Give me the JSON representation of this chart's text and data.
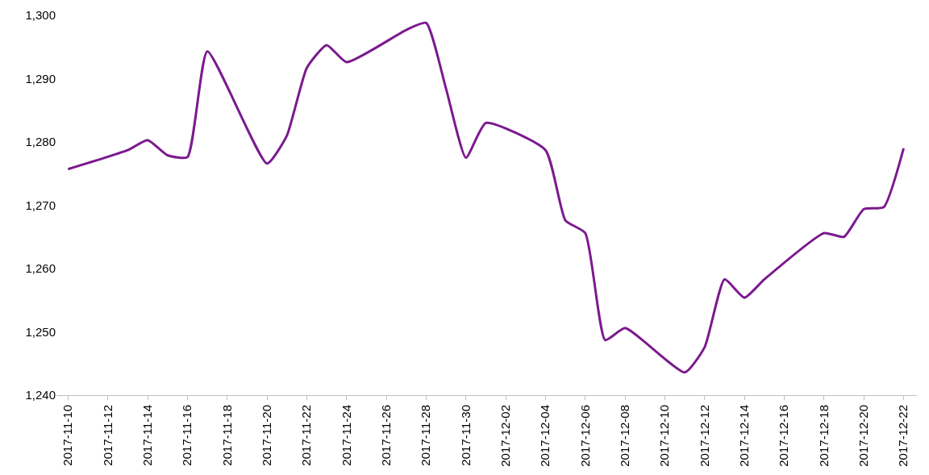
{
  "chart_data": {
    "type": "line",
    "x": [
      "2017-11-10",
      "2017-11-13",
      "2017-11-14",
      "2017-11-15",
      "2017-11-16",
      "2017-11-17",
      "2017-11-20",
      "2017-11-21",
      "2017-11-22",
      "2017-11-23",
      "2017-11-24",
      "2017-11-27",
      "2017-11-28",
      "2017-11-29",
      "2017-11-30",
      "2017-12-01",
      "2017-12-04",
      "2017-12-05",
      "2017-12-06",
      "2017-12-07",
      "2017-12-08",
      "2017-12-11",
      "2017-12-12",
      "2017-12-13",
      "2017-12-14",
      "2017-12-15",
      "2017-12-18",
      "2017-12-19",
      "2017-12-20",
      "2017-12-21",
      "2017-12-22"
    ],
    "series": [
      {
        "color": "#7b1a8e",
        "values": [
          1275.7,
          1278.7,
          1280.3,
          1277.9,
          1277.6,
          1294.3,
          1276.6,
          1281.0,
          1291.7,
          1295.3,
          1292.6,
          1297.7,
          1298.8,
          1288.4,
          1277.5,
          1283.0,
          1278.7,
          1267.6,
          1265.6,
          1248.7,
          1250.6,
          1243.6,
          1247.6,
          1258.3,
          1255.4,
          1258.3,
          1265.6,
          1265.0,
          1269.4,
          1269.7,
          1279.0
        ]
      }
    ],
    "xlim": [
      "2017-11-09T10:00",
      "2017-12-22T16:00"
    ],
    "xticks": [
      "2017-11-10",
      "2017-11-12",
      "2017-11-14",
      "2017-11-16",
      "2017-11-18",
      "2017-11-20",
      "2017-11-22",
      "2017-11-24",
      "2017-11-26",
      "2017-11-28",
      "2017-11-30",
      "2017-12-02",
      "2017-12-04",
      "2017-12-06",
      "2017-12-08",
      "2017-12-10",
      "2017-12-12",
      "2017-12-14",
      "2017-12-16",
      "2017-12-18",
      "2017-12-20",
      "2017-12-22"
    ],
    "ylim": [
      1240,
      1300
    ],
    "yticks": [
      {
        "value": 1240,
        "label": "1,240"
      },
      {
        "value": 1250,
        "label": "1,250"
      },
      {
        "value": 1260,
        "label": "1,260"
      },
      {
        "value": 1270,
        "label": "1,270"
      },
      {
        "value": 1280,
        "label": "1,280"
      },
      {
        "value": 1290,
        "label": "1,290"
      },
      {
        "value": 1300,
        "label": "1,300"
      }
    ],
    "marker": "none",
    "line_style": "solid"
  }
}
